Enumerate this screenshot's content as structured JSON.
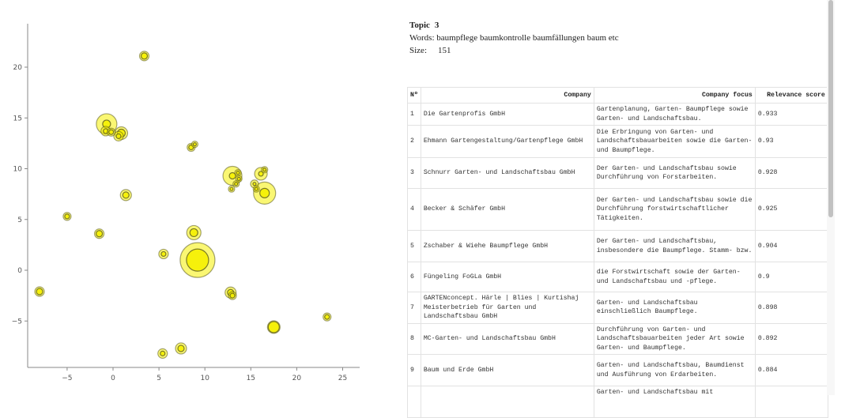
{
  "topic": {
    "topic_label": "Topic",
    "topic_value": "3",
    "words_label": "Words:",
    "words_value": "baumpflege baumkontrolle baumfällungen baum etc",
    "size_label": "Size:",
    "size_value": "151"
  },
  "table": {
    "headers": {
      "num": "Nº",
      "company": "Company",
      "focus": "Company focus",
      "score": "Relevance score"
    },
    "rows": [
      {
        "num": "1",
        "company": "Die Gartenprofis GmbH",
        "focus": "Gartenplanung, Garten- Baumpflege sowie Garten- und Landschaftsbau.",
        "score": "0.933"
      },
      {
        "num": "2",
        "company": "Ehmann Gartengestaltung/Gartenpflege GmbH",
        "focus": "Die Erbringung von Garten- und Landschaftsbauarbeiten sowie die Garten- und Baumpflege.",
        "score": "0.93"
      },
      {
        "num": "3",
        "company": "Schnurr Garten- und Landschaftsbau GmbH",
        "focus": "Der Garten- und Landschaftsbau sowie Durchführung von Forstarbeiten.",
        "score": "0.928"
      },
      {
        "num": "4",
        "company": "Becker & Schäfer GmbH",
        "focus": "Der Garten- und Landschaftsbau sowie die Durchführung forstwirtschaftlicher Tätigkeiten.",
        "score": "0.925"
      },
      {
        "num": "5",
        "company": "Zschaber & Wiehe Baumpflege GmbH",
        "focus": "Der Garten- und Landschaftsbau, insbesondere die Baumpflege. Stamm- bzw.",
        "score": "0.904"
      },
      {
        "num": "6",
        "company": "Füngeling FoGLa GmbH",
        "focus": "die Forstwirtschaft sowie der Garten- und Landschaftsbau und -pflege.",
        "score": "0.9"
      },
      {
        "num": "7",
        "company": "GARTENconcept. Härle | Blies | Kurtishaj Meisterbetrieb für Garten und Landschaftsbau GmbH",
        "focus": "Garten- und Landschaftsbau einschließlich Baumpflege.",
        "score": "0.898"
      },
      {
        "num": "8",
        "company": "MC-Garten- und Landschaftsbau GmbH",
        "focus": "Durchführung von Garten- und Landschaftsbauarbeiten jeder Art sowie Garten- und Baumpflege.",
        "score": "0.892"
      },
      {
        "num": "9",
        "company": "Baum und Erde GmbH",
        "focus": "Garten- und Landschaftsbau, Baumdienst und Ausführung von Erdarbeiten.",
        "score": "0.884"
      },
      {
        "num": "",
        "company": "",
        "focus": "Garten- und Landschaftsbau mit",
        "score": ""
      }
    ]
  },
  "colors": {
    "bubble_fill": "#f5f000",
    "bubble_stroke": "#5a5a1e",
    "axis": "#888888"
  },
  "chart_data": {
    "type": "scatter",
    "title": "",
    "xlabel": "",
    "ylabel": "",
    "xlim": [
      -9.5,
      26.5
    ],
    "ylim": [
      -9.5,
      24.5
    ],
    "xticks": [
      -5,
      0,
      5,
      10,
      15,
      20,
      25
    ],
    "yticks": [
      -5,
      0,
      5,
      10,
      15,
      20
    ],
    "grid": false,
    "legend": null,
    "points": [
      {
        "x": 3.4,
        "y": 21.1,
        "r": 6,
        "r_inner": 4
      },
      {
        "x": -0.7,
        "y": 14.4,
        "r": 13,
        "r_inner": 5
      },
      {
        "x": -0.8,
        "y": 13.7,
        "r": 6,
        "r_inner": 3
      },
      {
        "x": -0.2,
        "y": 13.6,
        "r": 5,
        "r_inner": 3
      },
      {
        "x": 0.9,
        "y": 13.5,
        "r": 8,
        "r_inner": 5
      },
      {
        "x": 0.6,
        "y": 13.2,
        "r": 6,
        "r_inner": 3
      },
      {
        "x": 8.5,
        "y": 12.1,
        "r": 5,
        "r_inner": 3
      },
      {
        "x": 8.9,
        "y": 12.4,
        "r": 4,
        "r_inner": 2
      },
      {
        "x": 1.4,
        "y": 7.4,
        "r": 7,
        "r_inner": 4
      },
      {
        "x": 13.0,
        "y": 9.3,
        "r": 12,
        "r_inner": 4
      },
      {
        "x": 13.6,
        "y": 9.6,
        "r": 4,
        "r_inner": 2
      },
      {
        "x": 13.7,
        "y": 9.0,
        "r": 4,
        "r_inner": 2
      },
      {
        "x": 13.4,
        "y": 8.5,
        "r": 4,
        "r_inner": 2
      },
      {
        "x": 12.9,
        "y": 8.0,
        "r": 4,
        "r_inner": 2
      },
      {
        "x": 16.1,
        "y": 9.5,
        "r": 8,
        "r_inner": 3
      },
      {
        "x": 16.5,
        "y": 9.9,
        "r": 4,
        "r_inner": 2
      },
      {
        "x": 15.4,
        "y": 8.5,
        "r": 5,
        "r_inner": 2
      },
      {
        "x": 15.6,
        "y": 8.0,
        "r": 4,
        "r_inner": 2
      },
      {
        "x": 16.5,
        "y": 7.6,
        "r": 14,
        "r_inner": 6
      },
      {
        "x": -5.0,
        "y": 5.3,
        "r": 5,
        "r_inner": 3
      },
      {
        "x": -1.5,
        "y": 3.6,
        "r": 6,
        "r_inner": 4
      },
      {
        "x": 8.8,
        "y": 3.7,
        "r": 9,
        "r_inner": 5
      },
      {
        "x": 5.5,
        "y": 1.6,
        "r": 6,
        "r_inner": 3
      },
      {
        "x": 9.2,
        "y": 1.0,
        "r": 22,
        "r_inner": 14
      },
      {
        "x": -8.0,
        "y": -2.1,
        "r": 6,
        "r_inner": 4
      },
      {
        "x": 12.8,
        "y": -2.2,
        "r": 7,
        "r_inner": 4
      },
      {
        "x": 13.0,
        "y": -2.5,
        "r": 5,
        "r_inner": 3
      },
      {
        "x": 17.5,
        "y": -5.6,
        "r": 8,
        "r_inner": 7
      },
      {
        "x": 23.3,
        "y": -4.6,
        "r": 5,
        "r_inner": 3
      },
      {
        "x": 5.4,
        "y": -8.2,
        "r": 6,
        "r_inner": 3
      },
      {
        "x": 7.4,
        "y": -7.7,
        "r": 7,
        "r_inner": 4
      }
    ]
  }
}
